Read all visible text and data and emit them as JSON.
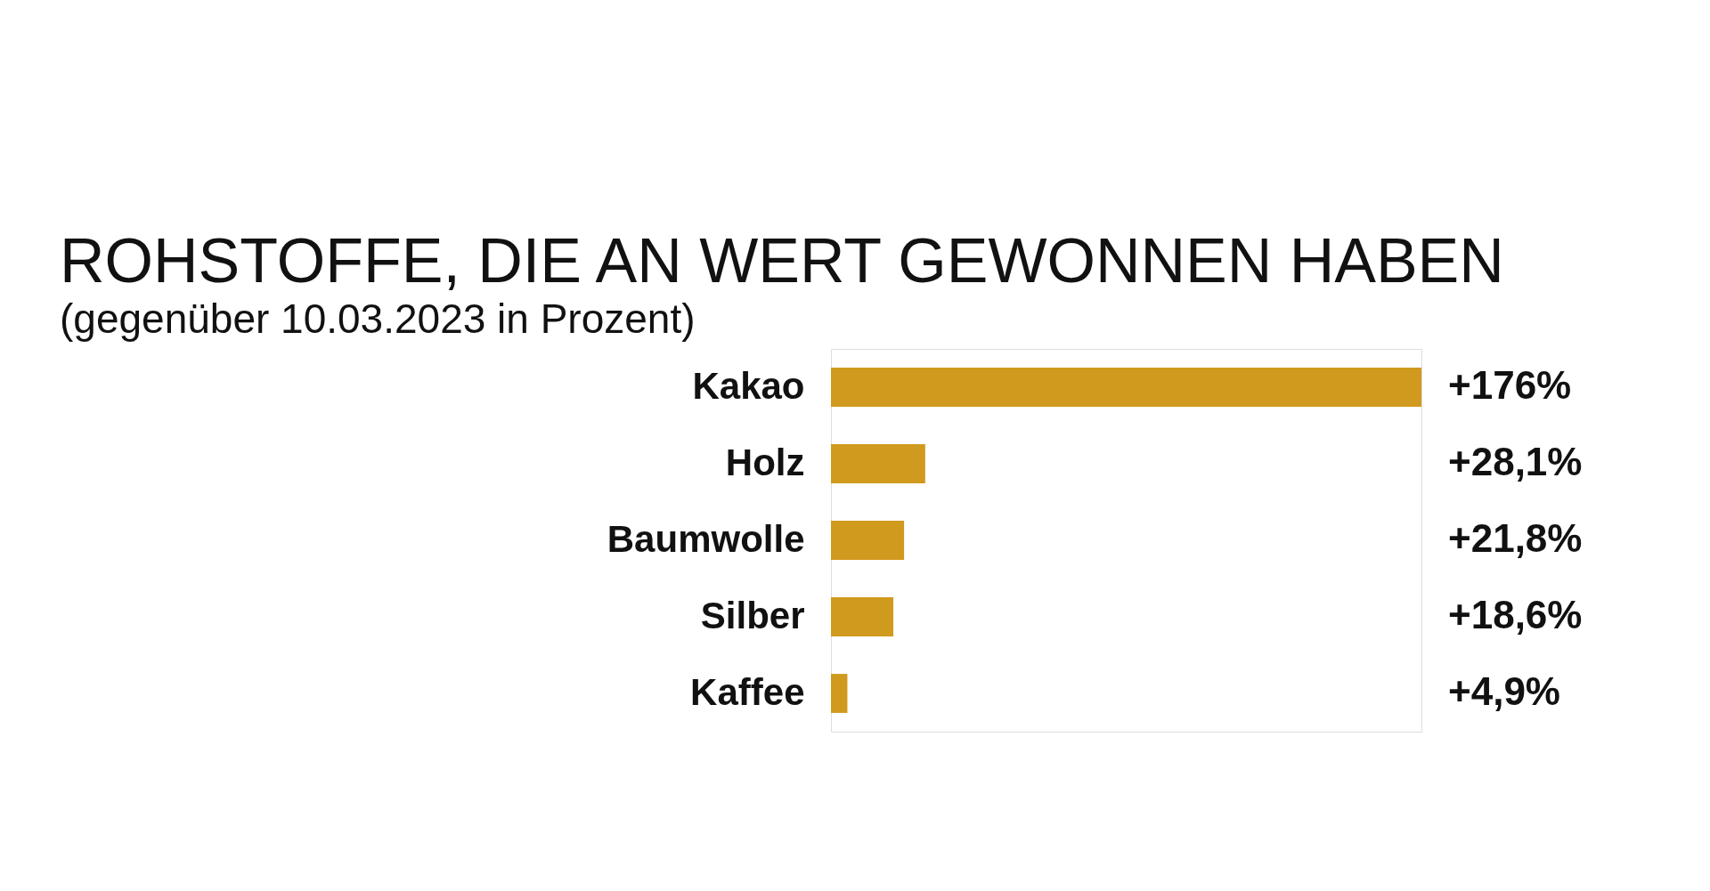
{
  "chart_data": {
    "type": "bar",
    "orientation": "horizontal",
    "title": "ROHSTOFFE, DIE AN WERT GEWONNEN HABEN",
    "subtitle": "(gegenüber 10.03.2023 in Prozent)",
    "categories": [
      "Kakao",
      "Holz",
      "Baumwolle",
      "Silber",
      "Kaffee"
    ],
    "values": [
      176,
      28.1,
      21.8,
      18.6,
      4.9
    ],
    "value_labels": [
      "+176%",
      "+28,1%",
      "+21,8%",
      "+18,6%",
      "+4,9%"
    ],
    "color": "#d09a1e",
    "tick_labels": "y"
  }
}
